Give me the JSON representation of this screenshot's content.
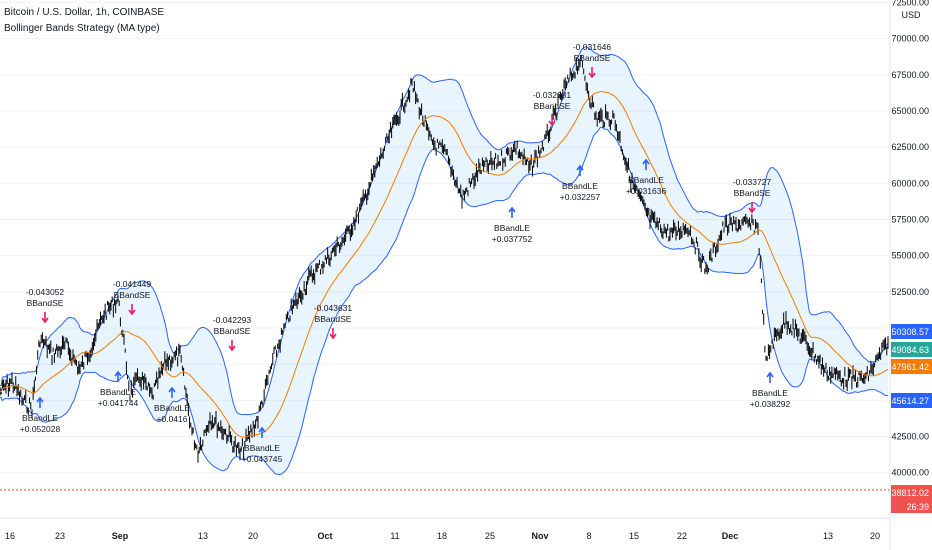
{
  "header": {
    "symbol": "Bitcoin / U.S. Dollar, 1h, COINBASE",
    "strategy": "Bollinger Bands Strategy (MA type)"
  },
  "price_axis": {
    "currency": "USD",
    "ticks": [
      "72500.00",
      "70000.00",
      "67500.00",
      "65000.00",
      "62500.00",
      "60000.00",
      "57500.00",
      "55000.00",
      "52500.00",
      "50000.00",
      "47500.00",
      "45000.00",
      "42500.00",
      "40000.00"
    ]
  },
  "time_axis": {
    "ticks": [
      "16",
      "23",
      "Sep",
      "13",
      "20",
      "Oct",
      "11",
      "18",
      "25",
      "Nov",
      "8",
      "15",
      "22",
      "Dec",
      "13",
      "20"
    ]
  },
  "price_tags": [
    {
      "name": "upper-band-tag",
      "value": "50308.57",
      "color": "#2962ff",
      "text_color": "#ffffff"
    },
    {
      "name": "last-price-tag",
      "value": "49084.63",
      "color": "#26a69a",
      "text_color": "#ffffff"
    },
    {
      "name": "basis-tag",
      "value": "47961.42",
      "color": "#f57c00",
      "text_color": "#ffffff"
    },
    {
      "name": "lower-band-tag",
      "value": "45614.27",
      "color": "#2962ff",
      "text_color": "#ffffff"
    },
    {
      "name": "stop-level-tag",
      "value": "38812.02",
      "color": "#ef5350",
      "text_color": "#ffffff"
    },
    {
      "name": "countdown-tag",
      "value": "26:39",
      "color": "#ef5350",
      "text_color": "#ffffff"
    }
  ],
  "signals": [
    {
      "type": "short",
      "label": "BBandSE",
      "value": "-0.043052"
    },
    {
      "type": "long",
      "label": "BBandLE",
      "value": "+0.052028"
    },
    {
      "type": "short",
      "label": "BBandSE",
      "value": "-0.041449"
    },
    {
      "type": "long",
      "label": "BBandLE",
      "value": "+0.041744"
    },
    {
      "type": "long",
      "label": "BBandLE",
      "value": "+0.0416"
    },
    {
      "type": "short",
      "label": "BBandSE",
      "value": "-0.042293"
    },
    {
      "type": "long",
      "label": "BBandLE",
      "value": "+0.043745"
    },
    {
      "type": "short",
      "label": "BBandSE",
      "value": "-0.043631"
    },
    {
      "type": "long",
      "label": "BBandLE",
      "value": "+0.037752"
    },
    {
      "type": "short",
      "label": "BBandSE",
      "value": "-0.032681"
    },
    {
      "type": "long",
      "label": "BBandLE",
      "value": "+0.032257"
    },
    {
      "type": "short",
      "label": "BBandSE",
      "value": "-0.031646"
    },
    {
      "type": "long",
      "label": "BBandLE",
      "value": "+0.031636"
    },
    {
      "type": "short",
      "label": "BBandSE",
      "value": "-0.033727"
    },
    {
      "type": "long",
      "label": "BBandLE",
      "value": "+0.038292"
    }
  ],
  "colors": {
    "candles": "#000000",
    "basis": "#f57c00",
    "bands": "#2962ff",
    "band_fill": "#2196f3",
    "short_arrow": "#e91e63",
    "long_arrow": "#2962ff",
    "stop_line": "#ef5350"
  },
  "chart_data": {
    "type": "line",
    "title": "Bitcoin / U.S. Dollar, 1h, COINBASE",
    "x_ticks": [
      "16",
      "23",
      "Sep",
      "13",
      "20",
      "Oct",
      "11",
      "18",
      "25",
      "Nov",
      "8",
      "15",
      "22",
      "Dec",
      "13",
      "20"
    ],
    "ylim": [
      39000,
      72500
    ],
    "series": [
      {
        "name": "price",
        "values": [
          {
            "x": "Aug 12",
            "y": 45600
          },
          {
            "x": "Aug 16",
            "y": 46300
          },
          {
            "x": "Aug 19",
            "y": 45000
          },
          {
            "x": "Aug 21",
            "y": 44500
          },
          {
            "x": "Aug 23",
            "y": 49300
          },
          {
            "x": "Aug 25",
            "y": 48200
          },
          {
            "x": "Aug 28",
            "y": 48800
          },
          {
            "x": "Aug 30",
            "y": 47100
          },
          {
            "x": "Sep 1",
            "y": 48500
          },
          {
            "x": "Sep 4",
            "y": 51000
          },
          {
            "x": "Sep 6",
            "y": 52000
          },
          {
            "x": "Sep 7",
            "y": 45500
          },
          {
            "x": "Sep 9",
            "y": 46600
          },
          {
            "x": "Sep 12",
            "y": 45300
          },
          {
            "x": "Sep 15",
            "y": 47700
          },
          {
            "x": "Sep 18",
            "y": 48100
          },
          {
            "x": "Sep 20",
            "y": 42800
          },
          {
            "x": "Sep 21",
            "y": 41500
          },
          {
            "x": "Sep 24",
            "y": 43800
          },
          {
            "x": "Sep 27",
            "y": 42600
          },
          {
            "x": "Sep 29",
            "y": 41300
          },
          {
            "x": "Oct 1",
            "y": 43800
          },
          {
            "x": "Oct 3",
            "y": 48000
          },
          {
            "x": "Oct 5",
            "y": 51000
          },
          {
            "x": "Oct 8",
            "y": 53500
          },
          {
            "x": "Oct 11",
            "y": 55000
          },
          {
            "x": "Oct 13",
            "y": 56500
          },
          {
            "x": "Oct 15",
            "y": 58500
          },
          {
            "x": "Oct 16",
            "y": 61000
          },
          {
            "x": "Oct 19",
            "y": 64000
          },
          {
            "x": "Oct 20",
            "y": 66800
          },
          {
            "x": "Oct 22",
            "y": 63000
          },
          {
            "x": "Oct 25",
            "y": 62000
          },
          {
            "x": "Oct 27",
            "y": 59000
          },
          {
            "x": "Oct 29",
            "y": 61000
          },
          {
            "x": "Nov 1",
            "y": 61500
          },
          {
            "x": "Nov 3",
            "y": 62500
          },
          {
            "x": "Nov 5",
            "y": 61000
          },
          {
            "x": "Nov 7",
            "y": 63000
          },
          {
            "x": "Nov 9",
            "y": 66500
          },
          {
            "x": "Nov 10",
            "y": 68500
          },
          {
            "x": "Nov 12",
            "y": 64500
          },
          {
            "x": "Nov 15",
            "y": 64500
          },
          {
            "x": "Nov 17",
            "y": 60000
          },
          {
            "x": "Nov 19",
            "y": 57500
          },
          {
            "x": "Nov 22",
            "y": 56500
          },
          {
            "x": "Nov 24",
            "y": 57000
          },
          {
            "x": "Nov 26",
            "y": 54000
          },
          {
            "x": "Nov 28",
            "y": 57000
          },
          {
            "x": "Dec 1",
            "y": 57200
          },
          {
            "x": "Dec 3",
            "y": 57000
          },
          {
            "x": "Dec 4",
            "y": 47500
          },
          {
            "x": "Dec 6",
            "y": 49000
          },
          {
            "x": "Dec 9",
            "y": 50500
          },
          {
            "x": "Dec 11",
            "y": 49000
          },
          {
            "x": "Dec 14",
            "y": 47000
          },
          {
            "x": "Dec 17",
            "y": 46500
          },
          {
            "x": "Dec 20",
            "y": 46500
          },
          {
            "x": "Dec 22",
            "y": 49000
          }
        ]
      }
    ]
  }
}
